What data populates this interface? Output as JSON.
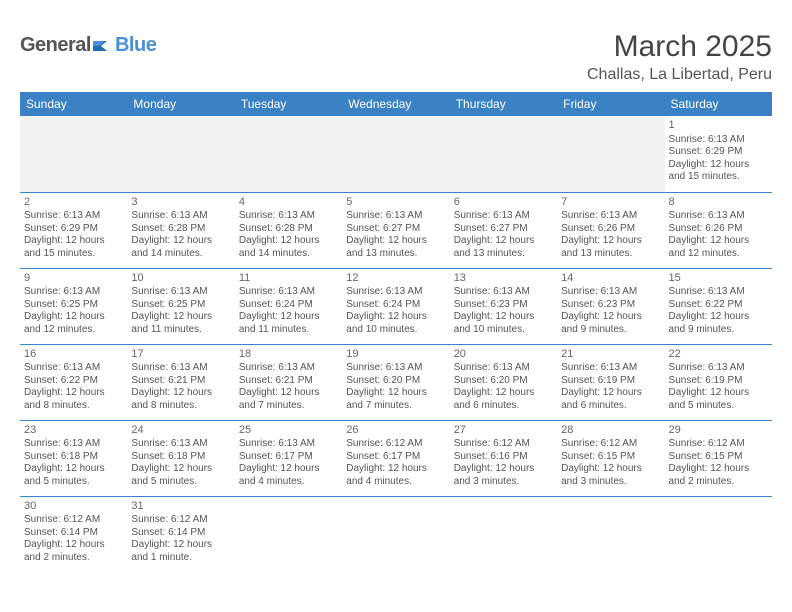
{
  "brand": {
    "part1": "General",
    "part2": "Blue"
  },
  "title": "March 2025",
  "location": "Challas, La Libertad, Peru",
  "colors": {
    "header_bg": "#3b82c4",
    "header_text": "#ffffff",
    "brand_blue": "#4a90d9",
    "text": "#555555",
    "gap_row_bg": "#f2f2f2",
    "border": "#3b82c4"
  },
  "typography": {
    "title_fontsize": 30,
    "location_fontsize": 16,
    "dayheader_fontsize": 12,
    "cell_fontsize": 10
  },
  "dayHeaders": [
    "Sunday",
    "Monday",
    "Tuesday",
    "Wednesday",
    "Thursday",
    "Friday",
    "Saturday"
  ],
  "weeks": [
    [
      null,
      null,
      null,
      null,
      null,
      null,
      {
        "num": "1",
        "sunrise": "Sunrise: 6:13 AM",
        "sunset": "Sunset: 6:29 PM",
        "daylight": "Daylight: 12 hours and 15 minutes."
      }
    ],
    [
      {
        "num": "2",
        "sunrise": "Sunrise: 6:13 AM",
        "sunset": "Sunset: 6:29 PM",
        "daylight": "Daylight: 12 hours and 15 minutes."
      },
      {
        "num": "3",
        "sunrise": "Sunrise: 6:13 AM",
        "sunset": "Sunset: 6:28 PM",
        "daylight": "Daylight: 12 hours and 14 minutes."
      },
      {
        "num": "4",
        "sunrise": "Sunrise: 6:13 AM",
        "sunset": "Sunset: 6:28 PM",
        "daylight": "Daylight: 12 hours and 14 minutes."
      },
      {
        "num": "5",
        "sunrise": "Sunrise: 6:13 AM",
        "sunset": "Sunset: 6:27 PM",
        "daylight": "Daylight: 12 hours and 13 minutes."
      },
      {
        "num": "6",
        "sunrise": "Sunrise: 6:13 AM",
        "sunset": "Sunset: 6:27 PM",
        "daylight": "Daylight: 12 hours and 13 minutes."
      },
      {
        "num": "7",
        "sunrise": "Sunrise: 6:13 AM",
        "sunset": "Sunset: 6:26 PM",
        "daylight": "Daylight: 12 hours and 13 minutes."
      },
      {
        "num": "8",
        "sunrise": "Sunrise: 6:13 AM",
        "sunset": "Sunset: 6:26 PM",
        "daylight": "Daylight: 12 hours and 12 minutes."
      }
    ],
    [
      {
        "num": "9",
        "sunrise": "Sunrise: 6:13 AM",
        "sunset": "Sunset: 6:25 PM",
        "daylight": "Daylight: 12 hours and 12 minutes."
      },
      {
        "num": "10",
        "sunrise": "Sunrise: 6:13 AM",
        "sunset": "Sunset: 6:25 PM",
        "daylight": "Daylight: 12 hours and 11 minutes."
      },
      {
        "num": "11",
        "sunrise": "Sunrise: 6:13 AM",
        "sunset": "Sunset: 6:24 PM",
        "daylight": "Daylight: 12 hours and 11 minutes."
      },
      {
        "num": "12",
        "sunrise": "Sunrise: 6:13 AM",
        "sunset": "Sunset: 6:24 PM",
        "daylight": "Daylight: 12 hours and 10 minutes."
      },
      {
        "num": "13",
        "sunrise": "Sunrise: 6:13 AM",
        "sunset": "Sunset: 6:23 PM",
        "daylight": "Daylight: 12 hours and 10 minutes."
      },
      {
        "num": "14",
        "sunrise": "Sunrise: 6:13 AM",
        "sunset": "Sunset: 6:23 PM",
        "daylight": "Daylight: 12 hours and 9 minutes."
      },
      {
        "num": "15",
        "sunrise": "Sunrise: 6:13 AM",
        "sunset": "Sunset: 6:22 PM",
        "daylight": "Daylight: 12 hours and 9 minutes."
      }
    ],
    [
      {
        "num": "16",
        "sunrise": "Sunrise: 6:13 AM",
        "sunset": "Sunset: 6:22 PM",
        "daylight": "Daylight: 12 hours and 8 minutes."
      },
      {
        "num": "17",
        "sunrise": "Sunrise: 6:13 AM",
        "sunset": "Sunset: 6:21 PM",
        "daylight": "Daylight: 12 hours and 8 minutes."
      },
      {
        "num": "18",
        "sunrise": "Sunrise: 6:13 AM",
        "sunset": "Sunset: 6:21 PM",
        "daylight": "Daylight: 12 hours and 7 minutes."
      },
      {
        "num": "19",
        "sunrise": "Sunrise: 6:13 AM",
        "sunset": "Sunset: 6:20 PM",
        "daylight": "Daylight: 12 hours and 7 minutes."
      },
      {
        "num": "20",
        "sunrise": "Sunrise: 6:13 AM",
        "sunset": "Sunset: 6:20 PM",
        "daylight": "Daylight: 12 hours and 6 minutes."
      },
      {
        "num": "21",
        "sunrise": "Sunrise: 6:13 AM",
        "sunset": "Sunset: 6:19 PM",
        "daylight": "Daylight: 12 hours and 6 minutes."
      },
      {
        "num": "22",
        "sunrise": "Sunrise: 6:13 AM",
        "sunset": "Sunset: 6:19 PM",
        "daylight": "Daylight: 12 hours and 5 minutes."
      }
    ],
    [
      {
        "num": "23",
        "sunrise": "Sunrise: 6:13 AM",
        "sunset": "Sunset: 6:18 PM",
        "daylight": "Daylight: 12 hours and 5 minutes."
      },
      {
        "num": "24",
        "sunrise": "Sunrise: 6:13 AM",
        "sunset": "Sunset: 6:18 PM",
        "daylight": "Daylight: 12 hours and 5 minutes."
      },
      {
        "num": "25",
        "sunrise": "Sunrise: 6:13 AM",
        "sunset": "Sunset: 6:17 PM",
        "daylight": "Daylight: 12 hours and 4 minutes."
      },
      {
        "num": "26",
        "sunrise": "Sunrise: 6:12 AM",
        "sunset": "Sunset: 6:17 PM",
        "daylight": "Daylight: 12 hours and 4 minutes."
      },
      {
        "num": "27",
        "sunrise": "Sunrise: 6:12 AM",
        "sunset": "Sunset: 6:16 PM",
        "daylight": "Daylight: 12 hours and 3 minutes."
      },
      {
        "num": "28",
        "sunrise": "Sunrise: 6:12 AM",
        "sunset": "Sunset: 6:15 PM",
        "daylight": "Daylight: 12 hours and 3 minutes."
      },
      {
        "num": "29",
        "sunrise": "Sunrise: 6:12 AM",
        "sunset": "Sunset: 6:15 PM",
        "daylight": "Daylight: 12 hours and 2 minutes."
      }
    ],
    [
      {
        "num": "30",
        "sunrise": "Sunrise: 6:12 AM",
        "sunset": "Sunset: 6:14 PM",
        "daylight": "Daylight: 12 hours and 2 minutes."
      },
      {
        "num": "31",
        "sunrise": "Sunrise: 6:12 AM",
        "sunset": "Sunset: 6:14 PM",
        "daylight": "Daylight: 12 hours and 1 minute."
      },
      null,
      null,
      null,
      null,
      null
    ]
  ]
}
